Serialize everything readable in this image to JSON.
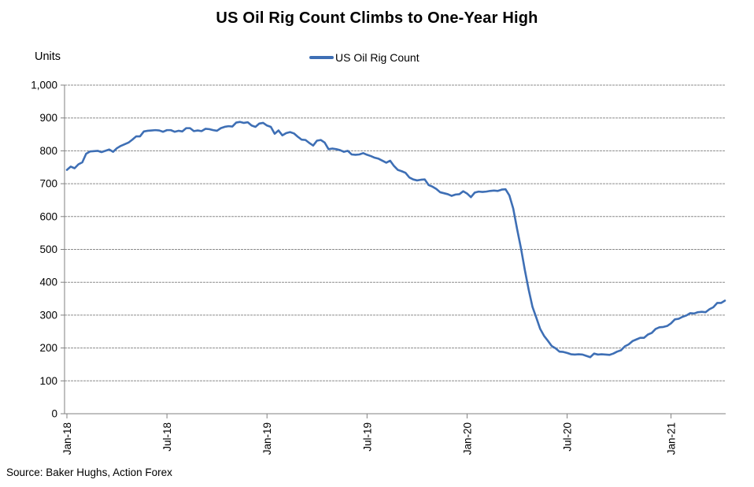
{
  "page": {
    "background": "#FFFFFF"
  },
  "chart_data": {
    "type": "line",
    "title": "US Oil Rig Count Climbs to One-Year High",
    "units_label": "Units",
    "source": "Source: Baker Hughs, Action Forex",
    "legend": {
      "position": "top-center"
    },
    "grid": {
      "horizontal": true,
      "vertical": false,
      "color": "#8C8C8C"
    },
    "axis_color": "#808080",
    "y_axis": {
      "min": 0,
      "max": 1000,
      "step": 100,
      "tick_labels": [
        "0",
        "100",
        "200",
        "300",
        "400",
        "500",
        "600",
        "700",
        "800",
        "900",
        "1,000"
      ]
    },
    "x_axis": {
      "tick_labels": [
        "Jan-18",
        "Jul-18",
        "Jan-19",
        "Jul-19",
        "Jan-20",
        "Jul-20",
        "Jan-21"
      ],
      "tick_indices": [
        0,
        26,
        52,
        78,
        104,
        130,
        157
      ]
    },
    "series": [
      {
        "name": "US Oil Rig Count",
        "color": "#3E6FB5",
        "values": [
          742,
          752,
          747,
          759,
          765,
          791,
          798,
          799,
          800,
          796,
          800,
          804,
          797,
          808,
          815,
          820,
          825,
          834,
          844,
          844,
          859,
          861,
          862,
          863,
          862,
          858,
          863,
          863,
          858,
          861,
          859,
          869,
          869,
          860,
          862,
          860,
          867,
          866,
          863,
          861,
          869,
          873,
          875,
          874,
          886,
          888,
          885,
          887,
          877,
          873,
          883,
          885,
          877,
          873,
          852,
          862,
          847,
          854,
          857,
          853,
          843,
          834,
          833,
          824,
          816,
          831,
          833,
          825,
          805,
          807,
          805,
          802,
          797,
          800,
          789,
          788,
          789,
          793,
          788,
          784,
          779,
          776,
          770,
          764,
          770,
          754,
          742,
          738,
          733,
          719,
          713,
          710,
          712,
          713,
          696,
          691,
          684,
          674,
          671,
          668,
          663,
          667,
          668,
          677,
          670,
          659,
          673,
          676,
          675,
          676,
          678,
          679,
          678,
          682,
          683,
          664,
          624,
          562,
          504,
          438,
          378,
          325,
          292,
          258,
          237,
          222,
          206,
          199,
          189,
          188,
          185,
          181,
          180,
          181,
          180,
          176,
          172,
          183,
          180,
          181,
          180,
          179,
          183,
          189,
          193,
          205,
          211,
          221,
          226,
          231,
          231,
          241,
          246,
          258,
          263,
          264,
          267,
          275,
          287,
          289,
          295,
          299,
          306,
          305,
          309,
          310,
          309,
          318,
          324,
          337,
          337,
          344
        ]
      }
    ]
  }
}
